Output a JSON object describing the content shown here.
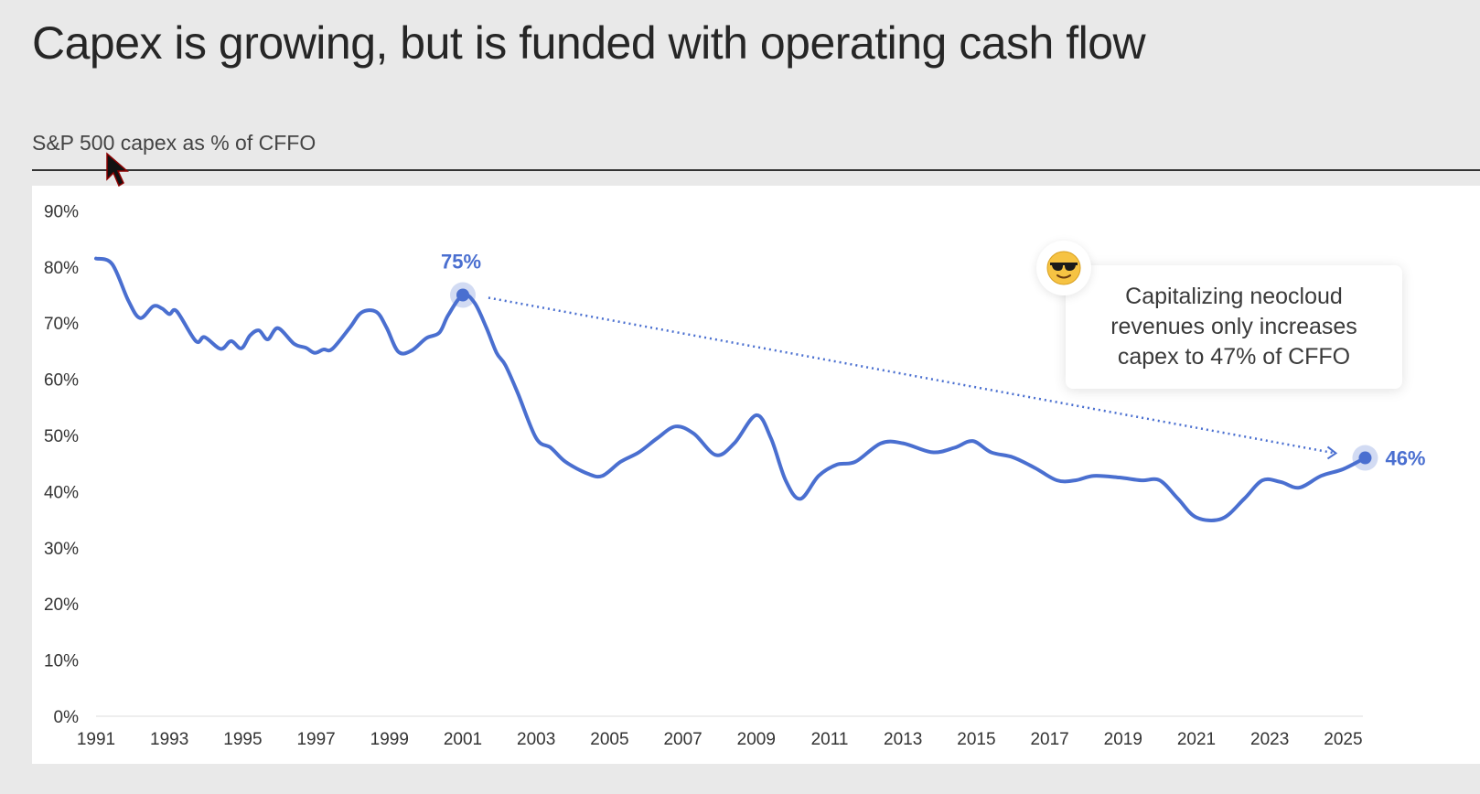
{
  "header": {
    "title": "Capex is growing, but is funded with operating cash flow",
    "subtitle": "S&P 500 capex as % of CFFO"
  },
  "annotation": {
    "text": "Capitalizing neocloud revenues only increases capex to 47% of CFFO",
    "icon": "sunglasses-emoji-icon"
  },
  "colors": {
    "line": "#4a6fd0",
    "background": "#e9e9e9",
    "panel": "#ffffff"
  },
  "chart_data": {
    "type": "line",
    "title": "S&P 500 capex as % of CFFO",
    "xlabel": "",
    "ylabel": "",
    "xlim": [
      1991,
      2025.6
    ],
    "ylim": [
      0,
      90
    ],
    "grid": false,
    "x_ticks": [
      "1991",
      "1993",
      "1995",
      "1997",
      "1999",
      "2001",
      "2003",
      "2005",
      "2007",
      "2009",
      "2011",
      "2013",
      "2015",
      "2017",
      "2019",
      "2021",
      "2023",
      "2025"
    ],
    "y_ticks": [
      "0%",
      "10%",
      "20%",
      "30%",
      "40%",
      "50%",
      "60%",
      "70%",
      "80%",
      "90%"
    ],
    "series": [
      {
        "name": "Capex as % of CFFO",
        "x": [
          1991.0,
          1991.44,
          1991.88,
          1992.2,
          1992.56,
          1992.8,
          1993.0,
          1993.2,
          1993.72,
          1993.96,
          1994.4,
          1994.68,
          1994.96,
          1995.2,
          1995.44,
          1995.68,
          1995.96,
          1996.4,
          1996.72,
          1996.96,
          1997.2,
          1997.44,
          1997.92,
          1998.24,
          1998.64,
          1998.92,
          1999.24,
          1999.6,
          2000.0,
          2000.36,
          2000.6,
          2001.0,
          2001.32,
          2001.64,
          2001.92,
          2002.16,
          2002.5,
          2003.0,
          2003.4,
          2003.8,
          2004.4,
          2004.8,
          2005.3,
          2005.8,
          2006.3,
          2006.8,
          2007.3,
          2007.9,
          2008.4,
          2009.0,
          2009.4,
          2009.8,
          2010.2,
          2010.7,
          2011.2,
          2011.7,
          2012.4,
          2013.0,
          2013.8,
          2014.4,
          2014.9,
          2015.4,
          2016.0,
          2016.6,
          2017.2,
          2017.7,
          2018.2,
          2018.9,
          2019.5,
          2020.0,
          2020.5,
          2021.0,
          2021.7,
          2022.3,
          2022.8,
          2023.3,
          2023.8,
          2024.4,
          2025.0,
          2025.6
        ],
        "y": [
          81.5,
          80.5,
          74.0,
          70.9,
          73.0,
          72.6,
          71.6,
          72.1,
          66.8,
          67.5,
          65.4,
          66.8,
          65.5,
          67.8,
          68.7,
          67.1,
          69.1,
          66.3,
          65.6,
          64.7,
          65.3,
          65.4,
          69.2,
          71.9,
          72.0,
          69.2,
          64.9,
          65.1,
          67.3,
          68.3,
          71.4,
          75.0,
          73.6,
          69.2,
          64.7,
          62.5,
          57.5,
          49.5,
          47.8,
          45.3,
          43.2,
          42.8,
          45.3,
          47.0,
          49.5,
          51.6,
          50.3,
          46.5,
          48.6,
          53.6,
          49.5,
          42.0,
          38.7,
          42.8,
          44.8,
          45.3,
          48.6,
          48.6,
          47.0,
          47.8,
          49.0,
          47.0,
          46.1,
          44.2,
          42.0,
          42.0,
          42.8,
          42.5,
          42.0,
          42.0,
          38.7,
          35.4,
          35.2,
          38.7,
          42.0,
          41.7,
          40.7,
          42.8,
          44.0,
          46.0
        ]
      }
    ],
    "annotations": [
      {
        "label": "75%",
        "x": 2001.0,
        "y": 75
      },
      {
        "label": "46%",
        "x": 2025.6,
        "y": 46
      }
    ],
    "trend_arrow": {
      "from": [
        2001.0,
        75
      ],
      "to": [
        2025.6,
        47
      ],
      "style": "dotted"
    }
  }
}
